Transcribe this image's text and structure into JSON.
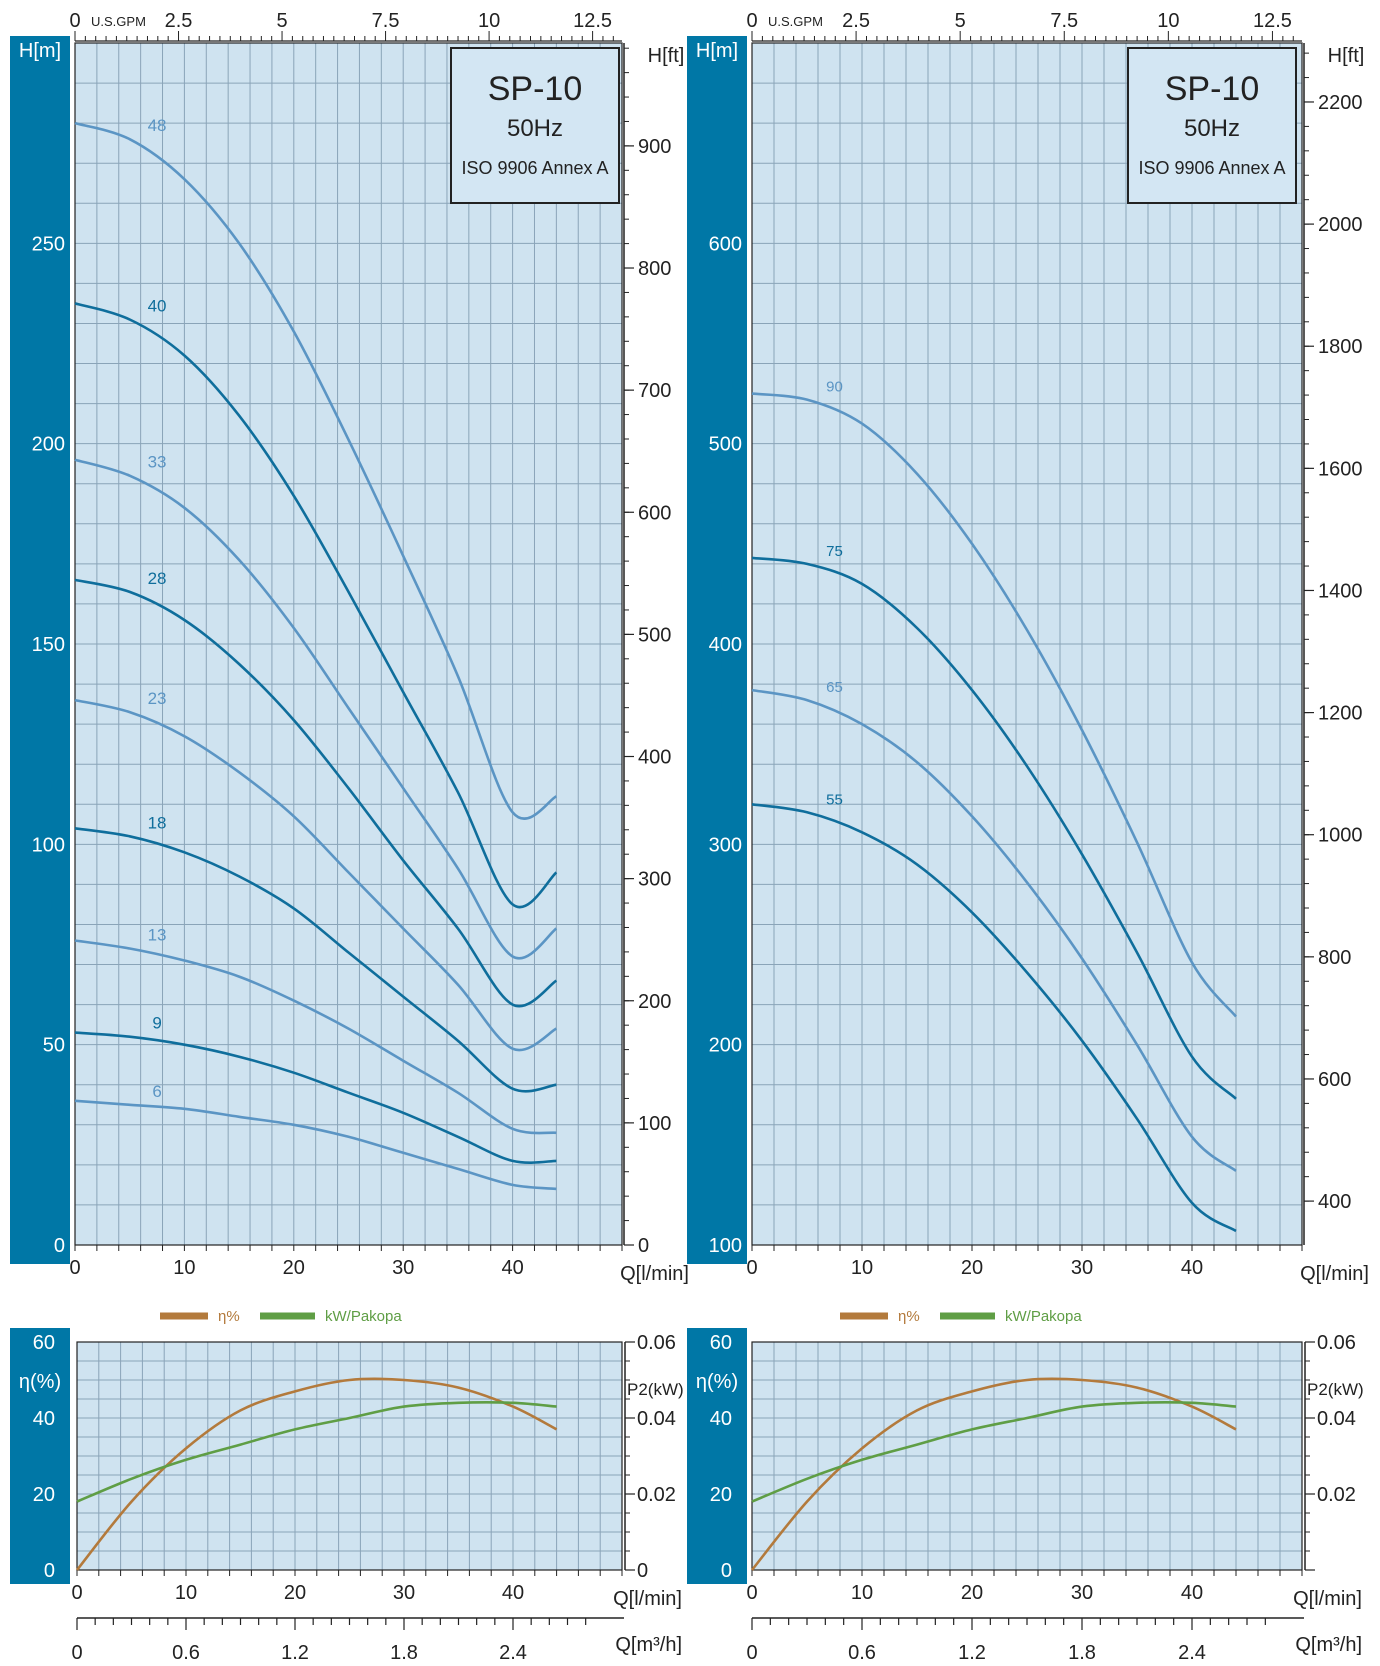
{
  "colors": {
    "plot_bg": "#cfe3f0",
    "grid": "#8aa4b8",
    "side_band": "#0077a6",
    "curve_light": "#5b95c4",
    "curve_dark": "#0f6e9c",
    "efficiency": "#b37a3c",
    "power": "#5f9e45",
    "axis": "#222222"
  },
  "chart_data": [
    {
      "type": "line",
      "panel": "head-left",
      "title_box": {
        "model": "SP-10",
        "frequency": "50Hz",
        "standard": "ISO 9906 Annex A"
      },
      "ylabel": "H[m]",
      "y2label": "H[ft]",
      "xlabel": "Q[l/min]",
      "x2label": "U.S.GPM",
      "xlim": [
        0,
        50
      ],
      "ylim": [
        0,
        300
      ],
      "x_ticks": [
        "0",
        "10",
        "20",
        "30",
        "40"
      ],
      "y_ticks": [
        "0",
        "50",
        "100",
        "150",
        "200",
        "250"
      ],
      "y2_ticks": [
        "0",
        "100",
        "200",
        "300",
        "400",
        "500",
        "600",
        "700",
        "800",
        "900"
      ],
      "x2_ticks": [
        "0",
        "2.5",
        "5",
        "7.5",
        "10",
        "12.5"
      ],
      "series": [
        {
          "name": "48",
          "x": [
            0,
            5,
            10,
            15,
            20,
            25,
            30,
            35,
            40,
            44
          ],
          "y": [
            280,
            276,
            266,
            250,
            228,
            201,
            172,
            142,
            108,
            112
          ]
        },
        {
          "name": "40",
          "x": [
            0,
            5,
            10,
            15,
            20,
            25,
            30,
            35,
            40,
            44
          ],
          "y": [
            235,
            231,
            222,
            207,
            187,
            163,
            138,
            113,
            85,
            93
          ]
        },
        {
          "name": "33",
          "x": [
            0,
            5,
            10,
            15,
            20,
            25,
            30,
            35,
            40,
            44
          ],
          "y": [
            196,
            192,
            184,
            171,
            154,
            134,
            114,
            94,
            72,
            79
          ]
        },
        {
          "name": "28",
          "x": [
            0,
            5,
            10,
            15,
            20,
            25,
            30,
            35,
            40,
            44
          ],
          "y": [
            166,
            163,
            156,
            145,
            131,
            114,
            96,
            79,
            60,
            66
          ]
        },
        {
          "name": "23",
          "x": [
            0,
            5,
            10,
            15,
            20,
            25,
            30,
            35,
            40,
            44
          ],
          "y": [
            136,
            133,
            127,
            118,
            107,
            93,
            79,
            65,
            49,
            54
          ]
        },
        {
          "name": "18",
          "x": [
            0,
            5,
            10,
            15,
            20,
            25,
            30,
            35,
            40,
            44
          ],
          "y": [
            104,
            102,
            98,
            92,
            84,
            73,
            62,
            51,
            39,
            40
          ]
        },
        {
          "name": "13",
          "x": [
            0,
            5,
            10,
            15,
            20,
            25,
            30,
            35,
            40,
            44
          ],
          "y": [
            76,
            74,
            71,
            67,
            61,
            54,
            46,
            38,
            29,
            28
          ]
        },
        {
          "name": "9",
          "x": [
            0,
            5,
            10,
            15,
            20,
            25,
            30,
            35,
            40,
            44
          ],
          "y": [
            53,
            52,
            50,
            47,
            43,
            38,
            33,
            27,
            21,
            21
          ]
        },
        {
          "name": "6",
          "x": [
            0,
            5,
            10,
            15,
            20,
            25,
            30,
            35,
            40,
            44
          ],
          "y": [
            36,
            35,
            34,
            32,
            30,
            27,
            23,
            19,
            15,
            14
          ]
        }
      ]
    },
    {
      "type": "line",
      "panel": "head-right",
      "title_box": {
        "model": "SP-10",
        "frequency": "50Hz",
        "standard": "ISO 9906 Annex A"
      },
      "ylabel": "H[m]",
      "y2label": "H[ft]",
      "xlabel": "Q[l/min]",
      "x2label": "U.S.GPM",
      "xlim": [
        0,
        50
      ],
      "ylim": [
        100,
        700
      ],
      "x_ticks": [
        "0",
        "10",
        "20",
        "30",
        "40"
      ],
      "y_ticks": [
        "100",
        "200",
        "300",
        "400",
        "500",
        "600"
      ],
      "y2_ticks": [
        "400",
        "600",
        "800",
        "1000",
        "1200",
        "1400",
        "1600",
        "1800",
        "2000",
        "2200"
      ],
      "x2_ticks": [
        "0",
        "2.5",
        "5",
        "7.5",
        "10",
        "12.5"
      ],
      "series": [
        {
          "name": "90",
          "x": [
            0,
            5,
            10,
            15,
            20,
            25,
            30,
            35,
            40,
            44
          ],
          "y": [
            525,
            522,
            510,
            485,
            450,
            407,
            357,
            301,
            241,
            214
          ]
        },
        {
          "name": "75",
          "x": [
            0,
            5,
            10,
            15,
            20,
            25,
            30,
            35,
            40,
            44
          ],
          "y": [
            443,
            440,
            430,
            408,
            377,
            339,
            295,
            246,
            194,
            173
          ]
        },
        {
          "name": "65",
          "x": [
            0,
            5,
            10,
            15,
            20,
            25,
            30,
            35,
            40,
            44
          ],
          "y": [
            377,
            372,
            360,
            341,
            314,
            281,
            243,
            200,
            154,
            137
          ]
        },
        {
          "name": "55",
          "x": [
            0,
            5,
            10,
            15,
            20,
            25,
            30,
            35,
            40,
            44
          ],
          "y": [
            320,
            316,
            306,
            290,
            266,
            236,
            202,
            163,
            121,
            107
          ]
        }
      ]
    },
    {
      "type": "line",
      "panel": "eff-left",
      "legend": [
        "η%",
        "kW/Pakopa"
      ],
      "ylabel": "η(%)",
      "y2label": "P2(kW)",
      "xlabel": "Q[l/min]",
      "x3label": "Q[m³/h]",
      "xlim": [
        0,
        50
      ],
      "ylim": [
        0,
        60
      ],
      "y2lim": [
        0,
        0.06
      ],
      "x_ticks": [
        "0",
        "10",
        "20",
        "30",
        "40"
      ],
      "y_ticks": [
        "0",
        "20",
        "40",
        "60"
      ],
      "y2_ticks": [
        "0",
        "0.02",
        "0.04",
        "0.06"
      ],
      "x3_ticks": [
        "0",
        "0.6",
        "1.2",
        "1.8",
        "2.4"
      ],
      "series": [
        {
          "name": "η%",
          "x": [
            0,
            5,
            10,
            15,
            20,
            25,
            30,
            35,
            40,
            44
          ],
          "y": [
            0,
            18,
            32,
            42,
            47,
            50,
            50,
            48,
            43,
            37
          ]
        },
        {
          "name": "kW/Pakopa",
          "x": [
            0,
            5,
            10,
            15,
            20,
            25,
            30,
            35,
            40,
            44
          ],
          "y2": [
            0.018,
            0.024,
            0.029,
            0.033,
            0.037,
            0.04,
            0.043,
            0.044,
            0.044,
            0.043
          ]
        }
      ]
    },
    {
      "type": "line",
      "panel": "eff-right",
      "legend": [
        "η%",
        "kW/Pakopa"
      ],
      "ylabel": "η(%)",
      "y2label": "P2(kW)",
      "xlabel": "Q[l/min]",
      "x3label": "Q[m³/h]",
      "xlim": [
        0,
        50
      ],
      "ylim": [
        0,
        60
      ],
      "y2lim": [
        0,
        0.06
      ],
      "x_ticks": [
        "0",
        "10",
        "20",
        "30",
        "40"
      ],
      "y_ticks": [
        "0",
        "20",
        "40",
        "60"
      ],
      "y2_ticks": [
        "0.02",
        "0.04",
        "0.06"
      ],
      "x3_ticks": [
        "0",
        "0.6",
        "1.2",
        "1.8",
        "2.4"
      ],
      "series": [
        {
          "name": "η%",
          "x": [
            0,
            5,
            10,
            15,
            20,
            25,
            30,
            35,
            40,
            44
          ],
          "y": [
            0,
            18,
            32,
            42,
            47,
            50,
            50,
            48,
            43,
            37
          ]
        },
        {
          "name": "kW/Pakopa",
          "x": [
            0,
            5,
            10,
            15,
            20,
            25,
            30,
            35,
            40,
            44
          ],
          "y2": [
            0.018,
            0.024,
            0.029,
            0.033,
            0.037,
            0.04,
            0.043,
            0.044,
            0.044,
            0.043
          ]
        }
      ]
    }
  ]
}
